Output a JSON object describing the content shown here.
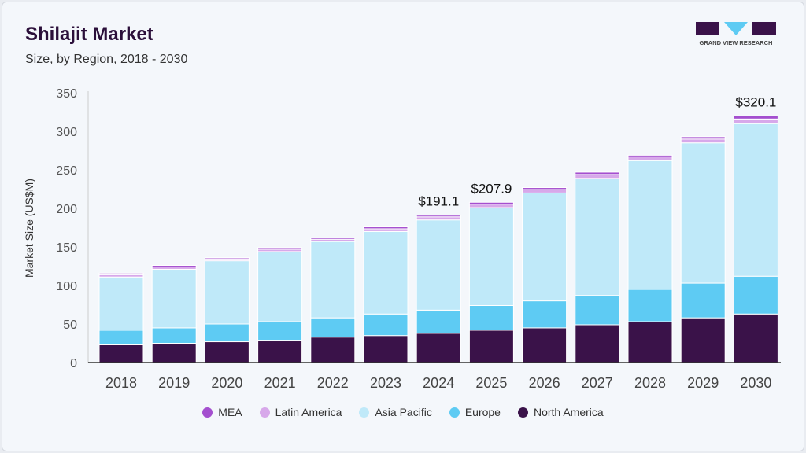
{
  "header": {
    "title": "Shilajit Market",
    "subtitle": "Size, by Region, 2018 - 2030",
    "logo_text": "GRAND VIEW RESEARCH"
  },
  "chart_data": {
    "type": "bar",
    "stacked": true,
    "title": "Shilajit Market",
    "subtitle": "Size, by Region, 2018 - 2030",
    "xlabel": "",
    "ylabel": "Market Size (US$M)",
    "ylim": [
      0,
      350
    ],
    "yticks": [
      0,
      50,
      100,
      150,
      200,
      250,
      300,
      350
    ],
    "grid": false,
    "legend_position": "bottom",
    "categories": [
      "2018",
      "2019",
      "2020",
      "2021",
      "2022",
      "2023",
      "2024",
      "2025",
      "2026",
      "2027",
      "2028",
      "2029",
      "2030"
    ],
    "series": [
      {
        "name": "North America",
        "color": "#3a1249",
        "values": [
          23,
          25,
          27,
          29,
          33,
          35,
          38,
          42,
          45,
          49,
          53,
          58,
          63
        ]
      },
      {
        "name": "Europe",
        "color": "#5ecbf3",
        "values": [
          19,
          20,
          23,
          24,
          25,
          28,
          30,
          32,
          35,
          38,
          42,
          45,
          49
        ]
      },
      {
        "name": "Asia Pacific",
        "color": "#bfe9f9",
        "values": [
          69,
          76,
          82,
          91,
          99,
          107,
          117,
          127,
          140,
          152,
          167,
          182,
          198
        ]
      },
      {
        "name": "Latin America",
        "color": "#d7a8ea",
        "values": [
          3,
          3,
          2.5,
          3,
          3,
          3.5,
          4,
          4.5,
          4.5,
          5,
          5,
          5,
          6
        ]
      },
      {
        "name": "MEA",
        "color": "#a44fcf",
        "values": [
          2,
          2,
          1.5,
          2,
          2,
          2.5,
          2.1,
          2.4,
          2.5,
          3,
          2,
          3,
          4.1
        ]
      }
    ],
    "annotations": [
      {
        "category": "2024",
        "label": "$191.1"
      },
      {
        "category": "2025",
        "label": "$207.9"
      },
      {
        "category": "2030",
        "label": "$320.1"
      }
    ]
  },
  "legend_order": [
    "MEA",
    "Latin America",
    "Asia Pacific",
    "Europe",
    "North America"
  ]
}
